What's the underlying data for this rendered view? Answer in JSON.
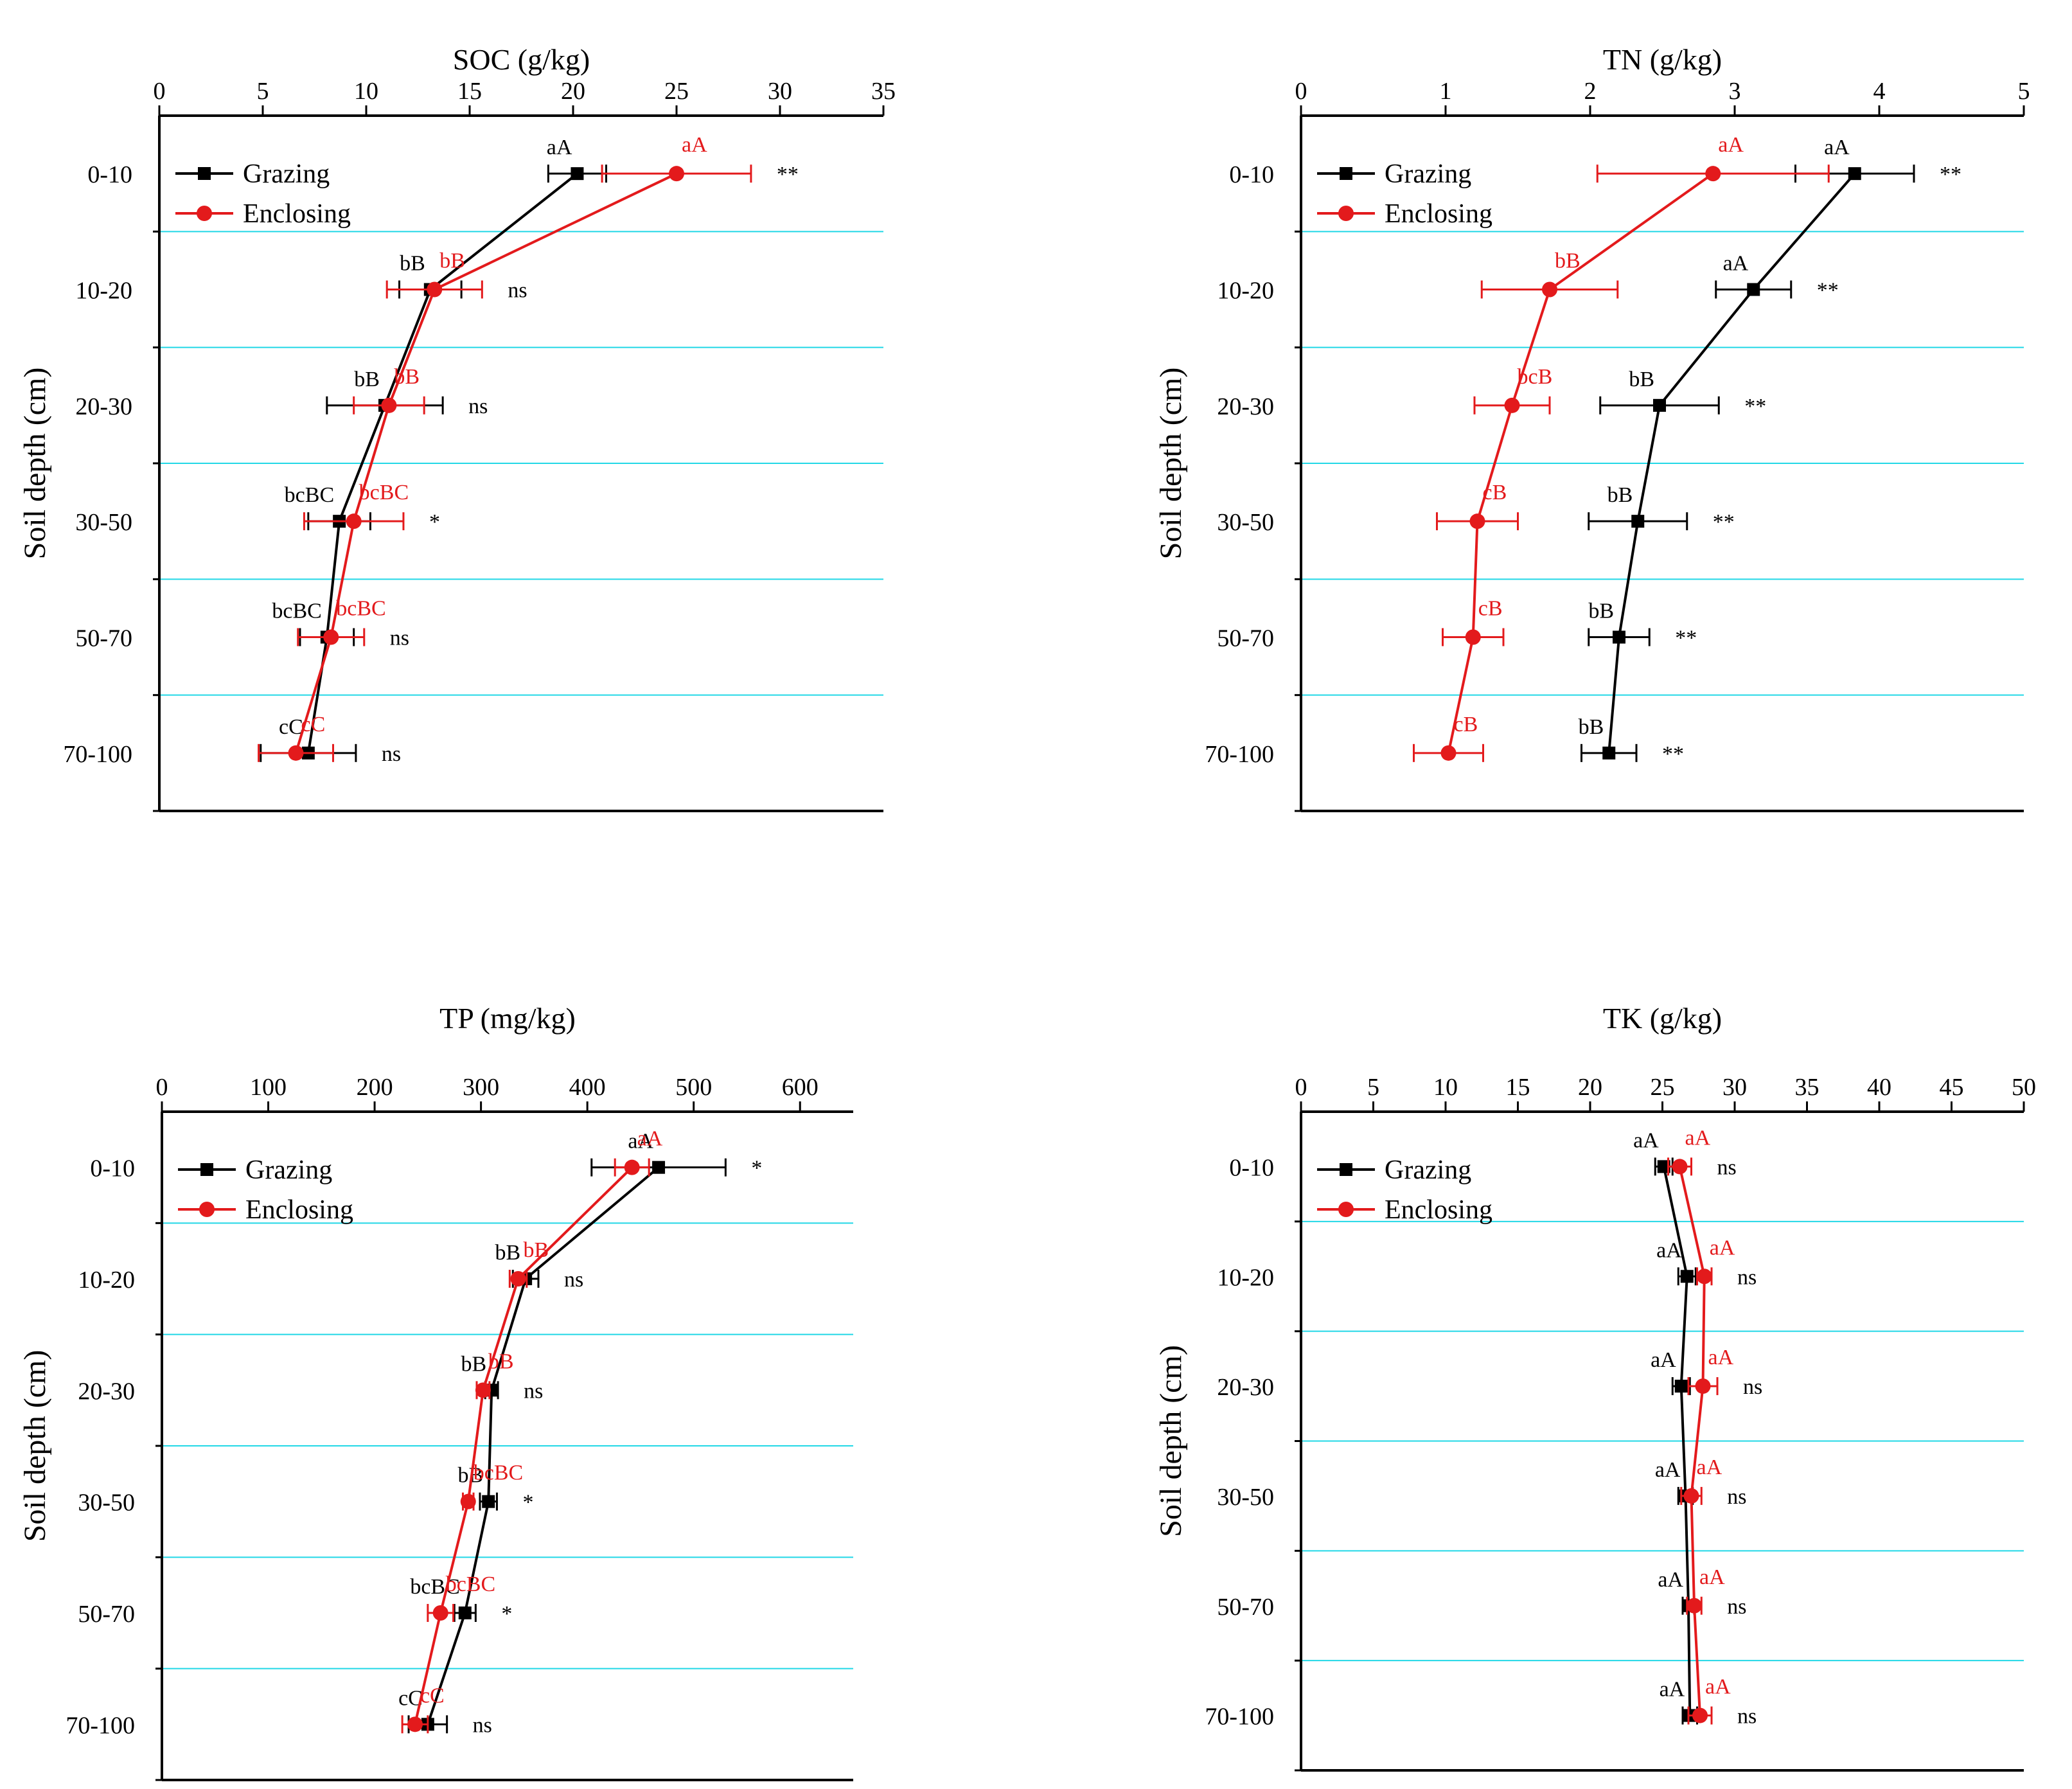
{
  "colors": {
    "grazing": "#000000",
    "enclosing": "#e31a1c",
    "gridline": "#22d8e6",
    "axis": "#000000"
  },
  "legend": {
    "grazing": "Grazing",
    "enclosing": "Enclosing"
  },
  "chart_data": [
    {
      "type": "line",
      "title": "SOC (g/kg)",
      "ylabel": "Soil depth (cm)",
      "xlim": [
        0,
        35
      ],
      "xticks": [
        "0",
        "5",
        "10",
        "15",
        "20",
        "25",
        "30",
        "35"
      ],
      "tickvalues": [
        0,
        5,
        10,
        15,
        20,
        25,
        30,
        35
      ],
      "categories": [
        "0-10",
        "10-20",
        "20-30",
        "30-50",
        "50-70",
        "70-100"
      ],
      "legend_position": "top-left",
      "series": [
        {
          "name": "Grazing",
          "values": [
            20.2,
            13.1,
            10.9,
            8.7,
            8.1,
            7.2
          ],
          "errors": [
            1.4,
            1.5,
            2.8,
            1.5,
            1.3,
            2.3
          ],
          "letters": [
            "aA",
            "bB",
            "bB",
            "bcBC",
            "bcBC",
            "cC"
          ]
        },
        {
          "name": "Enclosing",
          "values": [
            25.0,
            13.3,
            11.1,
            9.4,
            8.3,
            6.6
          ],
          "errors": [
            3.6,
            2.3,
            1.7,
            2.4,
            1.6,
            1.8
          ],
          "letters": [
            "aA",
            "bB",
            "bB",
            "bcBC",
            "bcBC",
            "cC"
          ]
        }
      ],
      "significance": [
        "**",
        "ns",
        "ns",
        "*",
        "ns",
        "ns"
      ]
    },
    {
      "type": "line",
      "title": "TN (g/kg)",
      "ylabel": "Soil depth (cm)",
      "xlim": [
        0,
        5
      ],
      "xticks": [
        "0",
        "1",
        "2",
        "3",
        "4",
        "5"
      ],
      "tickvalues": [
        0,
        1,
        2,
        3,
        4,
        5
      ],
      "categories": [
        "0-10",
        "10-20",
        "20-30",
        "30-50",
        "50-70",
        "70-100"
      ],
      "legend_position": "top-left",
      "series": [
        {
          "name": "Grazing",
          "values": [
            3.83,
            3.13,
            2.48,
            2.33,
            2.2,
            2.13
          ],
          "errors": [
            0.41,
            0.26,
            0.41,
            0.34,
            0.21,
            0.19
          ],
          "letters": [
            "aA",
            "aA",
            "bB",
            "bB",
            "bB",
            "bB"
          ]
        },
        {
          "name": "Enclosing",
          "values": [
            2.85,
            1.72,
            1.46,
            1.22,
            1.19,
            1.02
          ],
          "errors": [
            0.8,
            0.47,
            0.26,
            0.28,
            0.21,
            0.24
          ],
          "letters": [
            "aA",
            "bB",
            "bcB",
            "cB",
            "cB",
            "cB"
          ]
        }
      ],
      "significance": [
        "**",
        "**",
        "**",
        "**",
        "**",
        "**"
      ]
    },
    {
      "type": "line",
      "title": "TP (mg/kg)",
      "ylabel": "Soil depth (cm)",
      "xlim": [
        0,
        650
      ],
      "xticks": [
        "0",
        "100",
        "200",
        "300",
        "400",
        "500",
        "600"
      ],
      "tickvalues": [
        0,
        100,
        200,
        300,
        400,
        500,
        600
      ],
      "categories": [
        "0-10",
        "10-20",
        "20-30",
        "30-50",
        "50-70",
        "70-100"
      ],
      "legend_position": "top-left",
      "series": [
        {
          "name": "Grazing",
          "values": [
            467,
            342,
            310,
            307,
            285,
            250
          ],
          "errors": [
            63,
            12,
            6,
            8,
            10,
            18
          ],
          "letters": [
            "aA",
            "bB",
            "bB",
            "bB",
            "bcBC",
            "cC"
          ]
        },
        {
          "name": "Enclosing",
          "values": [
            442,
            335,
            302,
            288,
            262,
            238
          ],
          "errors": [
            16,
            8,
            6,
            5,
            12,
            12
          ],
          "letters": [
            "aA",
            "bB",
            "bB",
            "bcBC",
            "bcBC",
            "cC"
          ]
        }
      ],
      "significance": [
        "*",
        "ns",
        "ns",
        "*",
        "*",
        "ns"
      ]
    },
    {
      "type": "line",
      "title": "TK (g/kg)",
      "ylabel": "Soil depth (cm)",
      "xlim": [
        0,
        50
      ],
      "xticks": [
        "0",
        "5",
        "10",
        "15",
        "20",
        "25",
        "30",
        "35",
        "40",
        "45",
        "50"
      ],
      "tickvalues": [
        0,
        5,
        10,
        15,
        20,
        25,
        30,
        35,
        40,
        45,
        50
      ],
      "categories": [
        "0-10",
        "10-20",
        "20-30",
        "30-50",
        "50-70",
        "70-100"
      ],
      "legend_position": "top-left",
      "series": [
        {
          "name": "Grazing",
          "values": [
            25.1,
            26.7,
            26.3,
            26.6,
            26.8,
            26.9
          ],
          "errors": [
            0.6,
            0.6,
            0.6,
            0.5,
            0.4,
            0.5
          ],
          "letters": [
            "aA",
            "aA",
            "aA",
            "aA",
            "aA",
            "aA"
          ]
        },
        {
          "name": "Enclosing",
          "values": [
            26.2,
            27.9,
            27.8,
            27.0,
            27.2,
            27.6
          ],
          "errors": [
            0.8,
            0.5,
            1.0,
            0.7,
            0.5,
            0.8
          ],
          "letters": [
            "aA",
            "aA",
            "aA",
            "aA",
            "aA",
            "aA"
          ]
        }
      ],
      "significance": [
        "ns",
        "ns",
        "ns",
        "ns",
        "ns",
        "ns"
      ]
    }
  ]
}
